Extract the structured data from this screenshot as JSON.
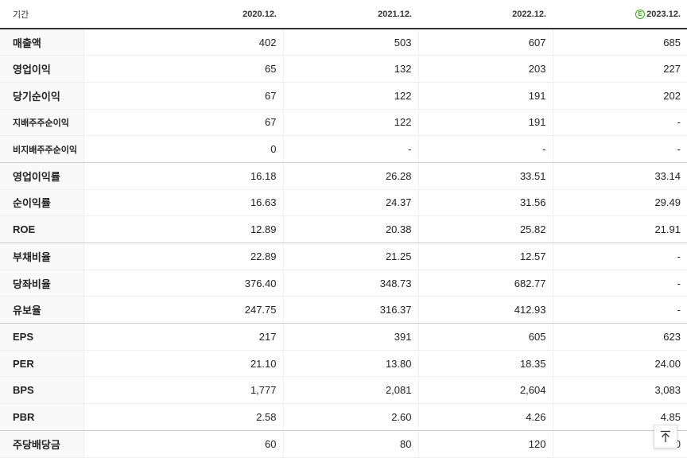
{
  "header": {
    "label": "기간",
    "periods": [
      "2020.12.",
      "2021.12.",
      "2022.12.",
      "2023.12."
    ],
    "estimate_marker": "E"
  },
  "rows": [
    {
      "label": "매출액",
      "values": [
        "402",
        "503",
        "607",
        "685"
      ]
    },
    {
      "label": "영업이익",
      "values": [
        "65",
        "132",
        "203",
        "227"
      ]
    },
    {
      "label": "당기순이익",
      "values": [
        "67",
        "122",
        "191",
        "202"
      ]
    },
    {
      "label": "지배주주순이익",
      "values": [
        "67",
        "122",
        "191",
        "-"
      ]
    },
    {
      "label": "비지배주주순이익",
      "values": [
        "0",
        "-",
        "-",
        "-"
      ]
    },
    {
      "label": "영업이익률",
      "values": [
        "16.18",
        "26.28",
        "33.51",
        "33.14"
      ]
    },
    {
      "label": "순이익률",
      "values": [
        "16.63",
        "24.37",
        "31.56",
        "29.49"
      ]
    },
    {
      "label": "ROE",
      "values": [
        "12.89",
        "20.38",
        "25.82",
        "21.91"
      ]
    },
    {
      "label": "부채비율",
      "values": [
        "22.89",
        "21.25",
        "12.57",
        "-"
      ]
    },
    {
      "label": "당좌비율",
      "values": [
        "376.40",
        "348.73",
        "682.77",
        "-"
      ]
    },
    {
      "label": "유보율",
      "values": [
        "247.75",
        "316.37",
        "412.93",
        "-"
      ]
    },
    {
      "label": "EPS",
      "values": [
        "217",
        "391",
        "605",
        "623"
      ]
    },
    {
      "label": "PER",
      "values": [
        "21.10",
        "13.80",
        "18.35",
        "24.00"
      ]
    },
    {
      "label": "BPS",
      "values": [
        "1,777",
        "2,081",
        "2,604",
        "3,083"
      ]
    },
    {
      "label": "PBR",
      "values": [
        "2.58",
        "2.60",
        "4.26",
        "4.85"
      ]
    },
    {
      "label": "주당배당금",
      "values": [
        "60",
        "80",
        "120",
        "0"
      ]
    }
  ],
  "colors": {
    "estimate": "#2db400",
    "header_border": "#333333"
  },
  "icons": {
    "scroll_top": "arrow-up-icon"
  }
}
